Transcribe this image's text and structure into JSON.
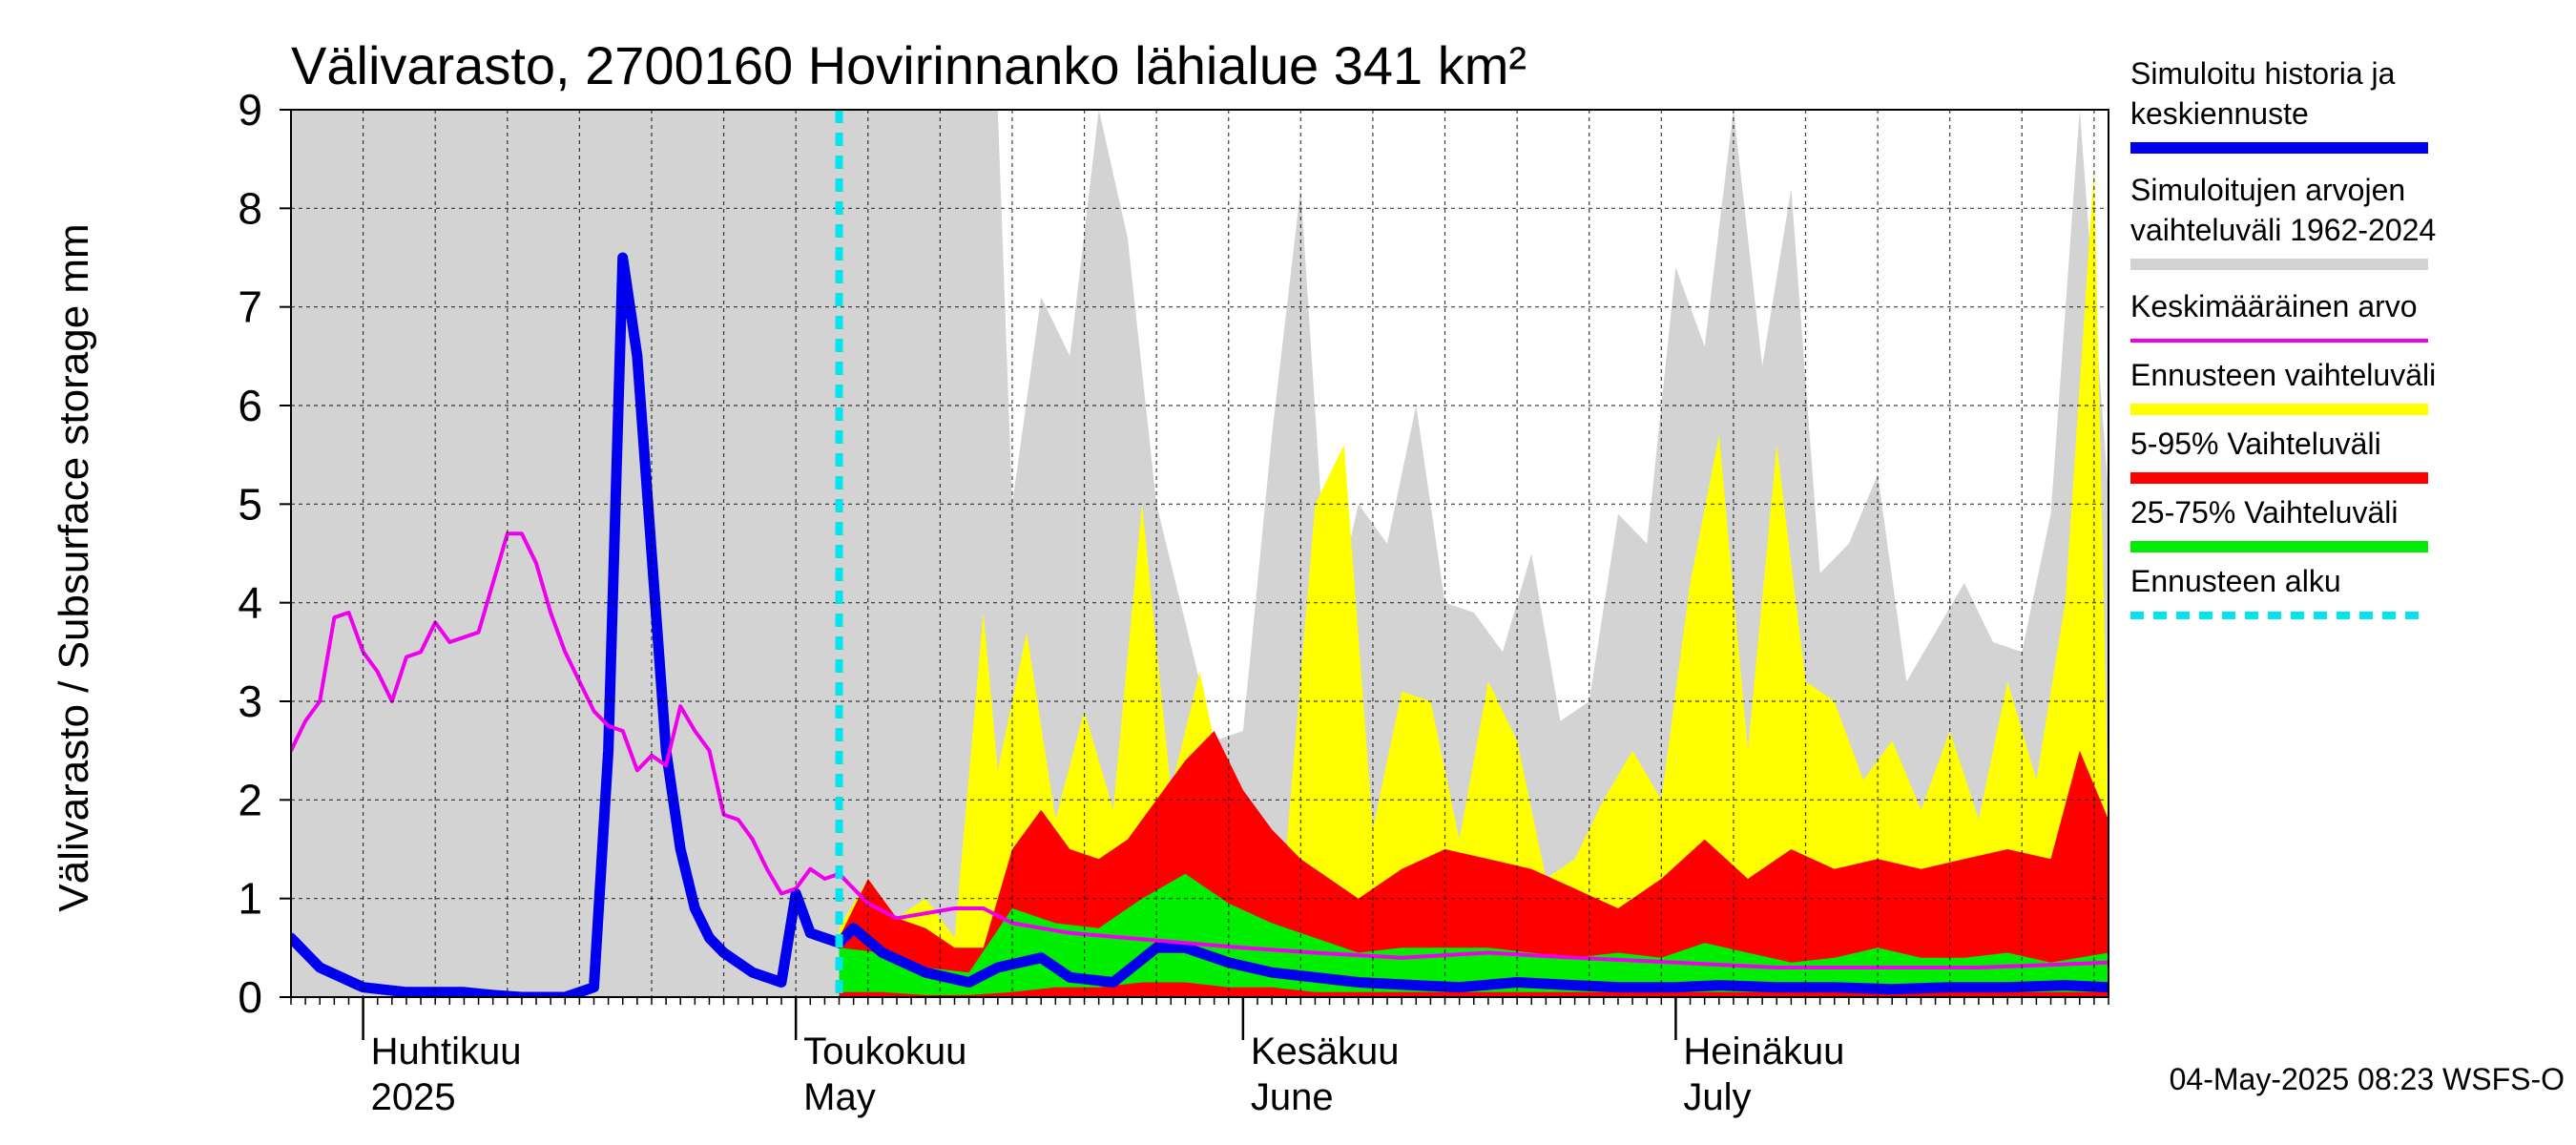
{
  "chart_data": {
    "type": "area",
    "title": "Välivarasto, 2700160 Hovirinnanko lähialue 341 km²",
    "ylabel": "Välivarasto / Subsurface storage  mm",
    "ylim": [
      0,
      9
    ],
    "yticks": [
      "0",
      "1",
      "2",
      "3",
      "4",
      "5",
      "6",
      "7",
      "8",
      "9"
    ],
    "xlim": [
      "2025-03-27",
      "2025-07-31"
    ],
    "month_labels": [
      {
        "fi": "Huhtikuu",
        "en": "2025",
        "date": "2025-04-01"
      },
      {
        "fi": "Toukokuu",
        "en": "May",
        "date": "2025-05-01"
      },
      {
        "fi": "Kesäkuu",
        "en": "June",
        "date": "2025-06-01"
      },
      {
        "fi": "Heinäkuu",
        "en": "July",
        "date": "2025-07-01"
      }
    ],
    "grid": true,
    "legend_position": "right",
    "forecast_start": "2025-05-04",
    "series": [
      {
        "name": "Simuloitu historia ja keskiennuste",
        "color": "#0000ee",
        "dates": [
          "2025-03-27",
          "2025-03-29",
          "2025-04-01",
          "2025-04-04",
          "2025-04-08",
          "2025-04-10",
          "2025-04-12",
          "2025-04-15",
          "2025-04-17",
          "2025-04-18",
          "2025-04-19",
          "2025-04-20",
          "2025-04-21",
          "2025-04-22",
          "2025-04-23",
          "2025-04-24",
          "2025-04-25",
          "2025-04-26",
          "2025-04-27",
          "2025-04-28",
          "2025-04-30",
          "2025-05-01",
          "2025-05-02",
          "2025-05-04",
          "2025-05-05",
          "2025-05-07",
          "2025-05-10",
          "2025-05-13",
          "2025-05-15",
          "2025-05-18",
          "2025-05-20",
          "2025-05-23",
          "2025-05-26",
          "2025-05-28",
          "2025-05-31",
          "2025-06-03",
          "2025-06-06",
          "2025-06-09",
          "2025-06-13",
          "2025-06-16",
          "2025-06-20",
          "2025-06-24",
          "2025-06-27",
          "2025-07-01",
          "2025-07-04",
          "2025-07-08",
          "2025-07-12",
          "2025-07-16",
          "2025-07-20",
          "2025-07-24",
          "2025-07-28",
          "2025-07-31"
        ],
        "values": [
          0.6,
          0.3,
          0.1,
          0.05,
          0.05,
          0.02,
          0.0,
          0.0,
          0.1,
          2.5,
          7.5,
          6.5,
          4.5,
          2.5,
          1.5,
          0.9,
          0.6,
          0.45,
          0.35,
          0.25,
          0.15,
          1.05,
          0.65,
          0.55,
          0.7,
          0.45,
          0.25,
          0.15,
          0.3,
          0.4,
          0.2,
          0.15,
          0.5,
          0.5,
          0.35,
          0.25,
          0.2,
          0.15,
          0.12,
          0.1,
          0.15,
          0.12,
          0.1,
          0.1,
          0.12,
          0.1,
          0.1,
          0.08,
          0.1,
          0.1,
          0.12,
          0.1
        ]
      },
      {
        "name": "Keskimääräinen arvo",
        "color": "#ee00ee",
        "dates": [
          "2025-03-27",
          "2025-03-28",
          "2025-03-29",
          "2025-03-30",
          "2025-03-31",
          "2025-04-01",
          "2025-04-02",
          "2025-04-03",
          "2025-04-04",
          "2025-04-05",
          "2025-04-06",
          "2025-04-07",
          "2025-04-08",
          "2025-04-09",
          "2025-04-10",
          "2025-04-11",
          "2025-04-12",
          "2025-04-13",
          "2025-04-14",
          "2025-04-15",
          "2025-04-16",
          "2025-04-17",
          "2025-04-18",
          "2025-04-19",
          "2025-04-20",
          "2025-04-21",
          "2025-04-22",
          "2025-04-23",
          "2025-04-24",
          "2025-04-25",
          "2025-04-26",
          "2025-04-27",
          "2025-04-28",
          "2025-04-29",
          "2025-04-30",
          "2025-05-01",
          "2025-05-02",
          "2025-05-03",
          "2025-05-04",
          "2025-05-06",
          "2025-05-08",
          "2025-05-10",
          "2025-05-12",
          "2025-05-14",
          "2025-05-16",
          "2025-05-20",
          "2025-05-24",
          "2025-05-28",
          "2025-06-01",
          "2025-06-06",
          "2025-06-12",
          "2025-06-18",
          "2025-06-24",
          "2025-07-01",
          "2025-07-08",
          "2025-07-15",
          "2025-07-22",
          "2025-07-31"
        ],
        "values": [
          2.5,
          2.8,
          3.0,
          3.85,
          3.9,
          3.5,
          3.3,
          3.0,
          3.45,
          3.5,
          3.8,
          3.6,
          3.65,
          3.7,
          4.2,
          4.7,
          4.7,
          4.4,
          3.9,
          3.5,
          3.2,
          2.9,
          2.75,
          2.7,
          2.3,
          2.45,
          2.35,
          2.95,
          2.7,
          2.5,
          1.85,
          1.8,
          1.6,
          1.3,
          1.05,
          1.1,
          1.3,
          1.2,
          1.25,
          0.95,
          0.8,
          0.85,
          0.9,
          0.9,
          0.75,
          0.65,
          0.6,
          0.55,
          0.5,
          0.45,
          0.4,
          0.45,
          0.4,
          0.35,
          0.3,
          0.3,
          0.3,
          0.35
        ]
      }
    ],
    "bands": [
      {
        "name": "Simuloitujen arvojen vaihteluväli 1962-2024",
        "color": "#d3d3d3",
        "dates": [
          "2025-03-27",
          "2025-05-15",
          "2025-05-16",
          "2025-05-18",
          "2025-05-20",
          "2025-05-22",
          "2025-05-24",
          "2025-05-26",
          "2025-05-28",
          "2025-05-30",
          "2025-06-01",
          "2025-06-03",
          "2025-06-05",
          "2025-06-07",
          "2025-06-09",
          "2025-06-11",
          "2025-06-13",
          "2025-06-15",
          "2025-06-17",
          "2025-06-19",
          "2025-06-21",
          "2025-06-23",
          "2025-06-25",
          "2025-06-27",
          "2025-06-29",
          "2025-07-01",
          "2025-07-03",
          "2025-07-05",
          "2025-07-07",
          "2025-07-09",
          "2025-07-11",
          "2025-07-13",
          "2025-07-15",
          "2025-07-17",
          "2025-07-19",
          "2025-07-21",
          "2025-07-23",
          "2025-07-25",
          "2025-07-27",
          "2025-07-29",
          "2025-07-31"
        ],
        "upper": [
          9,
          9,
          5.0,
          7.1,
          6.5,
          9.0,
          7.7,
          5.0,
          3.8,
          2.6,
          2.7,
          5.7,
          8.2,
          3.7,
          5.0,
          4.6,
          6.0,
          4.0,
          3.9,
          3.5,
          4.5,
          2.8,
          3.0,
          4.9,
          4.6,
          7.4,
          6.6,
          9.0,
          6.4,
          8.2,
          4.3,
          4.6,
          5.3,
          3.2,
          3.7,
          4.2,
          3.6,
          3.5,
          4.9,
          9.0,
          5.1
        ],
        "lower": [
          0,
          0,
          0,
          0,
          0,
          0,
          0,
          0,
          0,
          0,
          0,
          0,
          0,
          0,
          0,
          0,
          0,
          0,
          0,
          0,
          0,
          0,
          0,
          0,
          0,
          0,
          0,
          0,
          0,
          0,
          0,
          0,
          0,
          0,
          0,
          0,
          0,
          0,
          0,
          0,
          0
        ]
      },
      {
        "name": "Ennusteen vaihteluväli",
        "color": "#ffff00",
        "dates": [
          "2025-05-04",
          "2025-05-06",
          "2025-05-08",
          "2025-05-10",
          "2025-05-12",
          "2025-05-14",
          "2025-05-15",
          "2025-05-17",
          "2025-05-19",
          "2025-05-21",
          "2025-05-23",
          "2025-05-25",
          "2025-05-27",
          "2025-05-29",
          "2025-05-31",
          "2025-06-02",
          "2025-06-04",
          "2025-06-06",
          "2025-06-08",
          "2025-06-10",
          "2025-06-12",
          "2025-06-14",
          "2025-06-16",
          "2025-06-18",
          "2025-06-20",
          "2025-06-22",
          "2025-06-24",
          "2025-06-26",
          "2025-06-28",
          "2025-06-30",
          "2025-07-02",
          "2025-07-04",
          "2025-07-06",
          "2025-07-08",
          "2025-07-10",
          "2025-07-12",
          "2025-07-14",
          "2025-07-16",
          "2025-07-18",
          "2025-07-20",
          "2025-07-22",
          "2025-07-24",
          "2025-07-26",
          "2025-07-28",
          "2025-07-30",
          "2025-07-31"
        ],
        "upper": [
          0.7,
          1.2,
          0.8,
          1.0,
          0.6,
          3.9,
          2.3,
          3.7,
          1.8,
          2.9,
          1.9,
          5.0,
          2.1,
          3.3,
          1.9,
          1.5,
          1.5,
          5.0,
          5.6,
          1.7,
          3.1,
          3.0,
          1.6,
          3.2,
          2.6,
          1.2,
          1.4,
          2.0,
          2.5,
          2.0,
          4.2,
          5.7,
          2.5,
          5.6,
          3.2,
          3.0,
          2.2,
          2.6,
          1.9,
          2.7,
          1.8,
          3.2,
          2.2,
          4.0,
          8.4,
          1.8
        ],
        "lower": [
          0,
          0,
          0,
          0,
          0,
          0,
          0,
          0,
          0,
          0,
          0,
          0,
          0,
          0,
          0,
          0,
          0,
          0,
          0,
          0,
          0,
          0,
          0,
          0,
          0,
          0,
          0,
          0,
          0,
          0,
          0,
          0,
          0,
          0,
          0,
          0,
          0,
          0,
          0,
          0,
          0,
          0,
          0,
          0,
          0,
          0
        ]
      },
      {
        "name": "5-95% Vaihteluväli",
        "color": "#ff0000",
        "dates": [
          "2025-05-04",
          "2025-05-06",
          "2025-05-08",
          "2025-05-10",
          "2025-05-12",
          "2025-05-14",
          "2025-05-16",
          "2025-05-18",
          "2025-05-20",
          "2025-05-22",
          "2025-05-24",
          "2025-05-26",
          "2025-05-28",
          "2025-05-30",
          "2025-06-01",
          "2025-06-03",
          "2025-06-05",
          "2025-06-07",
          "2025-06-09",
          "2025-06-12",
          "2025-06-15",
          "2025-06-18",
          "2025-06-21",
          "2025-06-24",
          "2025-06-27",
          "2025-06-30",
          "2025-07-03",
          "2025-07-06",
          "2025-07-09",
          "2025-07-12",
          "2025-07-15",
          "2025-07-18",
          "2025-07-21",
          "2025-07-24",
          "2025-07-27",
          "2025-07-29",
          "2025-07-31"
        ],
        "upper": [
          0.6,
          1.2,
          0.8,
          0.7,
          0.5,
          0.5,
          1.5,
          1.9,
          1.5,
          1.4,
          1.6,
          2.0,
          2.4,
          2.7,
          2.1,
          1.7,
          1.4,
          1.2,
          1.0,
          1.3,
          1.5,
          1.4,
          1.3,
          1.1,
          0.9,
          1.2,
          1.6,
          1.2,
          1.5,
          1.3,
          1.4,
          1.3,
          1.4,
          1.5,
          1.4,
          2.5,
          1.8
        ],
        "lower": [
          0,
          0,
          0,
          0,
          0,
          0,
          0,
          0,
          0,
          0,
          0,
          0,
          0,
          0,
          0,
          0,
          0,
          0,
          0,
          0,
          0,
          0,
          0,
          0,
          0,
          0,
          0,
          0,
          0,
          0,
          0,
          0,
          0,
          0,
          0,
          0,
          0
        ]
      },
      {
        "name": "25-75% Vaihteluväli",
        "color": "#00ee00",
        "dates": [
          "2025-05-04",
          "2025-05-07",
          "2025-05-10",
          "2025-05-13",
          "2025-05-16",
          "2025-05-19",
          "2025-05-22",
          "2025-05-25",
          "2025-05-28",
          "2025-05-31",
          "2025-06-03",
          "2025-06-06",
          "2025-06-09",
          "2025-06-12",
          "2025-06-15",
          "2025-06-18",
          "2025-06-21",
          "2025-06-24",
          "2025-06-27",
          "2025-06-30",
          "2025-07-03",
          "2025-07-06",
          "2025-07-09",
          "2025-07-12",
          "2025-07-15",
          "2025-07-18",
          "2025-07-21",
          "2025-07-24",
          "2025-07-27",
          "2025-07-31"
        ],
        "upper": [
          0.5,
          0.45,
          0.3,
          0.25,
          0.9,
          0.75,
          0.7,
          1.0,
          1.25,
          0.95,
          0.75,
          0.6,
          0.45,
          0.5,
          0.5,
          0.5,
          0.45,
          0.4,
          0.45,
          0.4,
          0.55,
          0.45,
          0.35,
          0.4,
          0.5,
          0.4,
          0.4,
          0.45,
          0.35,
          0.45
        ],
        "lower": [
          0.05,
          0.05,
          0.02,
          0.02,
          0.05,
          0.1,
          0.1,
          0.15,
          0.15,
          0.1,
          0.1,
          0.05,
          0.05,
          0.05,
          0.05,
          0.05,
          0.05,
          0.05,
          0.05,
          0.05,
          0.05,
          0.05,
          0.05,
          0.05,
          0.05,
          0.05,
          0.05,
          0.05,
          0.05,
          0.05
        ]
      }
    ],
    "legend": [
      {
        "lines": [
          "Simuloitu historia ja",
          "keskiennuste"
        ],
        "color": "#0000ee",
        "style": "thick"
      },
      {
        "lines": [
          "Simuloitujen arvojen",
          "vaihteluväli 1962-2024"
        ],
        "color": "#d3d3d3",
        "style": "thick"
      },
      {
        "lines": [
          "Keskimääräinen arvo"
        ],
        "color": "#ee00ee",
        "style": "thin"
      },
      {
        "lines": [
          "Ennusteen vaihteluväli"
        ],
        "color": "#ffff00",
        "style": "thick"
      },
      {
        "lines": [
          "5-95% Vaihteluväli"
        ],
        "color": "#ff0000",
        "style": "thick"
      },
      {
        "lines": [
          "25-75% Vaihteluväli"
        ],
        "color": "#00ee00",
        "style": "thick"
      },
      {
        "lines": [
          "Ennusteen alku"
        ],
        "color": "#00e5ee",
        "style": "dashed"
      }
    ],
    "timestamp": "04-May-2025 08:23 WSFS-O"
  }
}
